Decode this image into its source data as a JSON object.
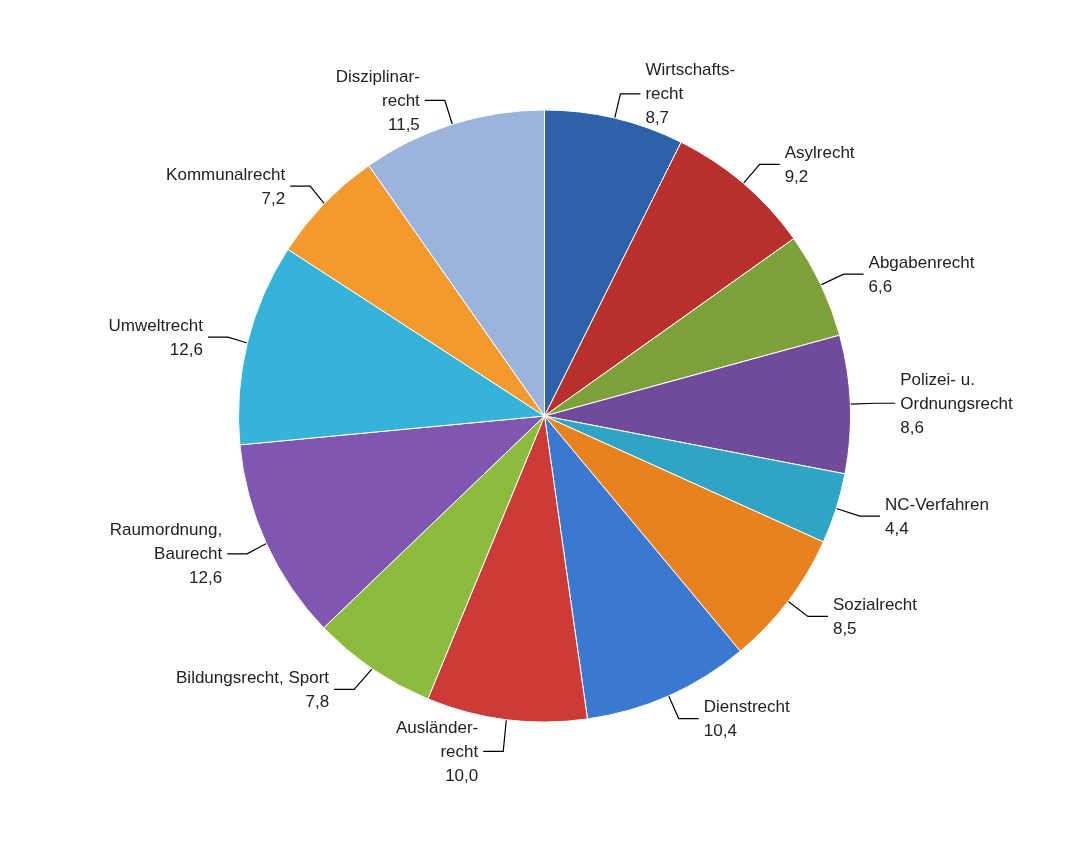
{
  "chart_data": {
    "type": "pie",
    "categories": [
      "Wirtschafts-\nrecht",
      "Asylrecht",
      "Abgabenrecht",
      "Polizei- u.\nOrdnungsrecht",
      "NC-Verfahren",
      "Sozialrecht",
      "Dienstrecht",
      "Ausländer-\nrecht",
      "Bildungsrecht, Sport",
      "Raumordnung,\nBaurecht",
      "Umweltrecht",
      "Kommunalrecht",
      "Disziplinar-\nrecht"
    ],
    "values": [
      8.7,
      9.2,
      6.6,
      8.6,
      4.4,
      8.5,
      10.4,
      10.0,
      7.8,
      12.6,
      12.6,
      7.2,
      11.5
    ],
    "value_labels": [
      "8,7",
      "9,2",
      "6,6",
      "8,6",
      "4,4",
      "8,5",
      "10,4",
      "10,0",
      "7,8",
      "12,6",
      "12,6",
      "7,2",
      "11,5"
    ],
    "colors": [
      "#2e62a8",
      "#b8302e",
      "#7fa13a",
      "#6f4b9a",
      "#2fa4c6",
      "#e8821e",
      "#3b78d0",
      "#cc3b37",
      "#8cbb3e",
      "#7f57b3",
      "#35b3d9",
      "#f39a2e",
      "#9cb4dc"
    ],
    "legend": false
  }
}
